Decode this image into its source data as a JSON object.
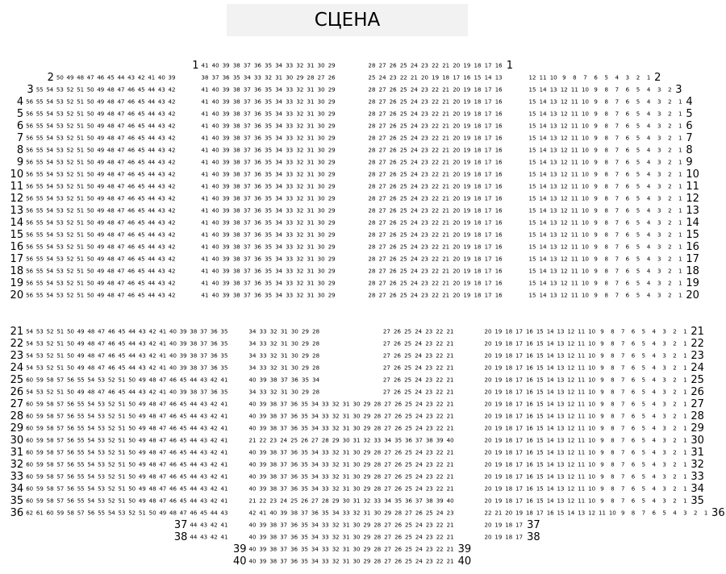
{
  "stage": {
    "label": "СЦЕНА"
  },
  "sections": [
    {
      "name": "upper",
      "rows": [
        {
          "label": "1",
          "blocks": [
            {
              "block": "C1",
              "from": 41,
              "to": 29
            },
            {
              "block": "C2",
              "from": 28,
              "to": 16
            }
          ]
        },
        {
          "label": "2",
          "blocks": [
            {
              "block": "L",
              "from": 50,
              "to": 39
            },
            {
              "block": "C1",
              "from": 38,
              "to": 26
            },
            {
              "block": "C2",
              "from": 25,
              "to": 13
            },
            {
              "block": "R",
              "from": 12,
              "to": 1
            }
          ]
        },
        {
          "label": "3",
          "blocks": [
            {
              "block": "L",
              "from": 55,
              "to": 42
            },
            {
              "block": "C1",
              "from": 41,
              "to": 29
            },
            {
              "block": "C2",
              "from": 28,
              "to": 16
            },
            {
              "block": "R",
              "from": 15,
              "to": 2
            }
          ]
        },
        {
          "label": "4",
          "preset": "full"
        },
        {
          "label": "5",
          "preset": "full"
        },
        {
          "label": "6",
          "preset": "full"
        },
        {
          "label": "7",
          "preset": "full"
        },
        {
          "label": "8",
          "preset": "full"
        },
        {
          "label": "9",
          "preset": "full"
        },
        {
          "label": "10",
          "preset": "full"
        },
        {
          "label": "11",
          "preset": "full"
        },
        {
          "label": "12",
          "preset": "full"
        },
        {
          "label": "13",
          "preset": "full"
        },
        {
          "label": "14",
          "preset": "full"
        },
        {
          "label": "15",
          "preset": "full"
        },
        {
          "label": "16",
          "preset": "full"
        },
        {
          "label": "17",
          "preset": "full"
        },
        {
          "label": "18",
          "preset": "full"
        },
        {
          "label": "19",
          "preset": "full"
        },
        {
          "label": "20",
          "preset": "full"
        }
      ],
      "presets": {
        "full": [
          {
            "block": "L",
            "from": 56,
            "to": 42
          },
          {
            "block": "C1",
            "from": 41,
            "to": 29
          },
          {
            "block": "C2",
            "from": 28,
            "to": 16
          },
          {
            "block": "R",
            "from": 15,
            "to": 1
          }
        ]
      }
    },
    {
      "name": "lower",
      "rows": [
        {
          "label": "21",
          "preset": "split"
        },
        {
          "label": "22",
          "preset": "split"
        },
        {
          "label": "23",
          "preset": "split"
        },
        {
          "label": "24",
          "preset": "split"
        },
        {
          "label": "25",
          "blocks": [
            {
              "block": "L",
              "from": 60,
              "to": 41
            },
            {
              "block": "CL",
              "from": 40,
              "to": 34
            },
            {
              "block": "CR",
              "from": 27,
              "to": 21
            },
            {
              "block": "R",
              "from": 20,
              "to": 1
            }
          ]
        },
        {
          "label": "26",
          "preset": "split"
        },
        {
          "label": "27",
          "preset": "full"
        },
        {
          "label": "28",
          "preset": "full"
        },
        {
          "label": "29",
          "preset": "full"
        },
        {
          "label": "30",
          "preset": "asc"
        },
        {
          "label": "31",
          "preset": "full"
        },
        {
          "label": "32",
          "preset": "full"
        },
        {
          "label": "33",
          "preset": "full"
        },
        {
          "label": "34",
          "preset": "full"
        },
        {
          "label": "35",
          "preset": "asc"
        },
        {
          "label": "36",
          "blocks": [
            {
              "block": "L",
              "from": 62,
              "to": 43
            },
            {
              "block": "C",
              "from": 42,
              "to": 23
            },
            {
              "block": "R",
              "from": 22,
              "to": 1
            }
          ]
        },
        {
          "label": "37",
          "blocks": [
            {
              "block": "L",
              "from": 44,
              "to": 41
            },
            {
              "block": "C",
              "from": 40,
              "to": 21
            },
            {
              "block": "R",
              "from": 20,
              "to": 17
            }
          ]
        },
        {
          "label": "38",
          "blocks": [
            {
              "block": "L",
              "from": 44,
              "to": 41
            },
            {
              "block": "C",
              "from": 40,
              "to": 21
            },
            {
              "block": "R",
              "from": 20,
              "to": 17
            }
          ]
        },
        {
          "label": "39",
          "blocks": [
            {
              "block": "C",
              "from": 40,
              "to": 21
            }
          ]
        },
        {
          "label": "40",
          "blocks": [
            {
              "block": "C",
              "from": 40,
              "to": 21
            }
          ]
        }
      ],
      "presets": {
        "split": [
          {
            "block": "L",
            "from": 54,
            "to": 35
          },
          {
            "block": "CL",
            "from": 34,
            "to": 28
          },
          {
            "block": "CR",
            "from": 27,
            "to": 21
          },
          {
            "block": "R",
            "from": 20,
            "to": 1
          }
        ],
        "full": [
          {
            "block": "L",
            "from": 60,
            "to": 41
          },
          {
            "block": "C",
            "from": 40,
            "to": 21
          },
          {
            "block": "R",
            "from": 20,
            "to": 1
          }
        ],
        "asc": [
          {
            "block": "L",
            "from": 60,
            "to": 41
          },
          {
            "block": "C",
            "from": 21,
            "to": 40
          },
          {
            "block": "R",
            "from": 20,
            "to": 1
          }
        ]
      }
    }
  ]
}
